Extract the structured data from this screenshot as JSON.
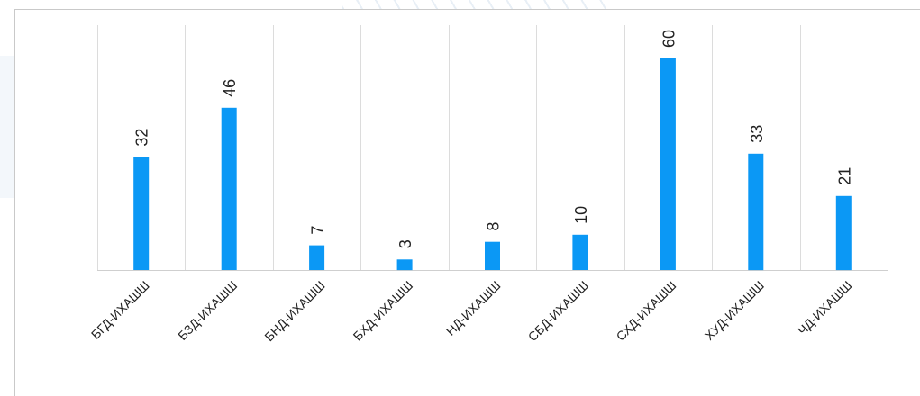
{
  "chart_data": {
    "type": "bar",
    "categories": [
      "БГД-ИХАШШ",
      "БЗД-ИХАШШ",
      "БНД-ИХАШШ",
      "БХД-ИХАШШ",
      "НД-ИХАШШ",
      "СБД-ИХАШШ",
      "СХД-ИХАШШ",
      "ХУД-ИХАШШ",
      "ЧД-ИХАШШ"
    ],
    "values": [
      32,
      46,
      7,
      3,
      8,
      10,
      60,
      33,
      21
    ],
    "title": "",
    "xlabel": "",
    "ylabel": "",
    "ylim": [
      0,
      60
    ],
    "grid": "vertical",
    "legend": "none",
    "data_labels": true,
    "bar_color": "#0b98f5",
    "grid_color": "#dcdcdc",
    "axis_color": "#cfcfcf"
  }
}
